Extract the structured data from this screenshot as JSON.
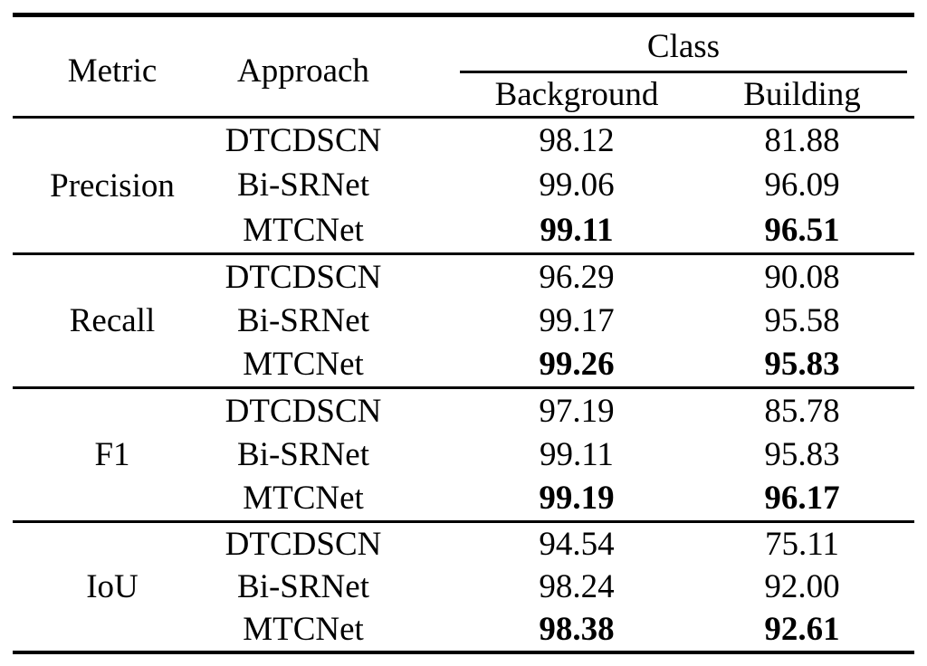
{
  "table": {
    "header": {
      "metric": "Metric",
      "approach": "Approach",
      "class_group": "Class",
      "col_background": "Background",
      "col_building": "Building"
    },
    "groups": [
      {
        "metric": "Precision",
        "rows": [
          {
            "approach": "DTCDSCN",
            "background": "98.12",
            "building": "81.88",
            "bold": false
          },
          {
            "approach": "Bi-SRNet",
            "background": "99.06",
            "building": "96.09",
            "bold": false
          },
          {
            "approach": "MTCNet",
            "background": "99.11",
            "building": "96.51",
            "bold": true
          }
        ]
      },
      {
        "metric": "Recall",
        "rows": [
          {
            "approach": "DTCDSCN",
            "background": "96.29",
            "building": "90.08",
            "bold": false
          },
          {
            "approach": "Bi-SRNet",
            "background": "99.17",
            "building": "95.58",
            "bold": false
          },
          {
            "approach": "MTCNet",
            "background": "99.26",
            "building": "95.83",
            "bold": true
          }
        ]
      },
      {
        "metric": "F1",
        "rows": [
          {
            "approach": "DTCDSCN",
            "background": "97.19",
            "building": "85.78",
            "bold": false
          },
          {
            "approach": "Bi-SRNet",
            "background": "99.11",
            "building": "95.83",
            "bold": false
          },
          {
            "approach": "MTCNet",
            "background": "99.19",
            "building": "96.17",
            "bold": true
          }
        ]
      },
      {
        "metric": "IoU",
        "rows": [
          {
            "approach": "DTCDSCN",
            "background": "94.54",
            "building": "75.11",
            "bold": false
          },
          {
            "approach": "Bi-SRNet",
            "background": "98.24",
            "building": "92.00",
            "bold": false
          },
          {
            "approach": "MTCNet",
            "background": "98.38",
            "building": "92.61",
            "bold": true
          }
        ]
      }
    ],
    "colors": {
      "text": "#000000",
      "background": "#ffffff",
      "rule": "#000000"
    }
  },
  "chart_data": {
    "type": "table",
    "title": "",
    "columns": [
      "Metric",
      "Approach",
      "Background",
      "Building"
    ],
    "rows": [
      [
        "Precision",
        "DTCDSCN",
        98.12,
        81.88
      ],
      [
        "Precision",
        "Bi-SRNet",
        99.06,
        96.09
      ],
      [
        "Precision",
        "MTCNet",
        99.11,
        96.51
      ],
      [
        "Recall",
        "DTCDSCN",
        96.29,
        90.08
      ],
      [
        "Recall",
        "Bi-SRNet",
        99.17,
        95.58
      ],
      [
        "Recall",
        "MTCNet",
        99.26,
        95.83
      ],
      [
        "F1",
        "DTCDSCN",
        97.19,
        85.78
      ],
      [
        "F1",
        "Bi-SRNet",
        99.11,
        95.83
      ],
      [
        "F1",
        "MTCNet",
        99.19,
        96.17
      ],
      [
        "IoU",
        "DTCDSCN",
        94.54,
        75.11
      ],
      [
        "IoU",
        "Bi-SRNet",
        98.24,
        92.0
      ],
      [
        "IoU",
        "MTCNet",
        98.38,
        92.61
      ]
    ],
    "bold_rows_approach": "MTCNet"
  }
}
